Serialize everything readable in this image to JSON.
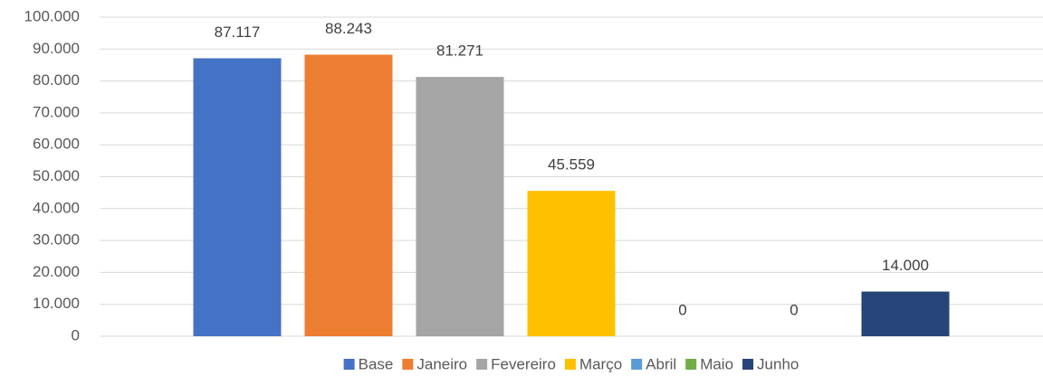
{
  "chart_data": {
    "type": "bar",
    "categories": [
      null
    ],
    "series": [
      {
        "name": "Base",
        "color": "#4472c4",
        "values": [
          87117
        ],
        "value_labels": [
          "87.117"
        ]
      },
      {
        "name": "Janeiro",
        "color": "#ed7d31",
        "values": [
          88243
        ],
        "value_labels": [
          "88.243"
        ]
      },
      {
        "name": "Fevereiro",
        "color": "#a5a5a5",
        "values": [
          81271
        ],
        "value_labels": [
          "81.271"
        ]
      },
      {
        "name": "Março",
        "color": "#ffc000",
        "values": [
          45559
        ],
        "value_labels": [
          "45.559"
        ]
      },
      {
        "name": "Abril",
        "color": "#5b9bd5",
        "values": [
          0
        ]
      },
      {
        "name": "Maio",
        "color": "#70ad47",
        "values": [
          0
        ]
      },
      {
        "name": "Junho",
        "color": "#264478",
        "values": [
          14000
        ],
        "value_labels": [
          "14.000"
        ]
      }
    ],
    "ylim": [
      0,
      100000
    ],
    "yticks": [
      0,
      {
        "value": 10000,
        "label": "10.000"
      },
      {
        "value": 20000,
        "label": "20.000"
      },
      {
        "value": 30000,
        "label": "30.000"
      },
      {
        "value": 40000,
        "label": "40.000"
      },
      {
        "value": 50000,
        "label": "50.000"
      },
      {
        "value": 60000,
        "label": "60.000"
      },
      {
        "value": 70000,
        "label": "70.000"
      },
      {
        "value": 80000,
        "label": "80.000"
      },
      {
        "value": 90000,
        "label": "90.000"
      },
      {
        "value": 100000,
        "label": "100.000"
      }
    ],
    "grid": true,
    "legend": "bottom"
  }
}
